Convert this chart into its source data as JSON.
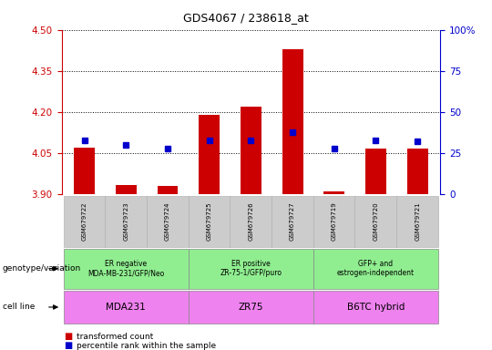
{
  "title": "GDS4067 / 238618_at",
  "samples": [
    "GSM679722",
    "GSM679723",
    "GSM679724",
    "GSM679725",
    "GSM679726",
    "GSM679727",
    "GSM679719",
    "GSM679720",
    "GSM679721"
  ],
  "red_values": [
    4.07,
    3.935,
    3.93,
    4.19,
    4.22,
    4.43,
    3.91,
    4.065,
    4.065
  ],
  "blue_values": [
    33,
    30,
    28,
    33,
    33,
    38,
    28,
    33,
    32
  ],
  "ymin": 3.9,
  "ymax": 4.5,
  "y2min": 0,
  "y2max": 100,
  "yticks": [
    3.9,
    4.05,
    4.2,
    4.35,
    4.5
  ],
  "y2ticks": [
    0,
    25,
    50,
    75,
    100
  ],
  "bar_color": "#CC0000",
  "dot_color": "#0000CC",
  "bar_width": 0.5,
  "left_tick_color": "#CC0000",
  "right_tick_color": "#0000CC",
  "sample_bg": "#CCCCCC",
  "geno_color": "#90EE90",
  "cell_color": "#EE82EE",
  "geno_labels": [
    "ER negative\nMDA-MB-231/GFP/Neo",
    "ER positive\nZR-75-1/GFP/puro",
    "GFP+ and\nestrogen-independent"
  ],
  "cell_labels": [
    "MDA231",
    "ZR75",
    "B6TC hybrid"
  ],
  "group_starts": [
    0,
    3,
    6
  ],
  "group_ends": [
    3,
    6,
    9
  ],
  "genotype_label": "genotype/variation",
  "cell_line_label": "cell line",
  "legend_items": [
    "transformed count",
    "percentile rank within the sample"
  ]
}
